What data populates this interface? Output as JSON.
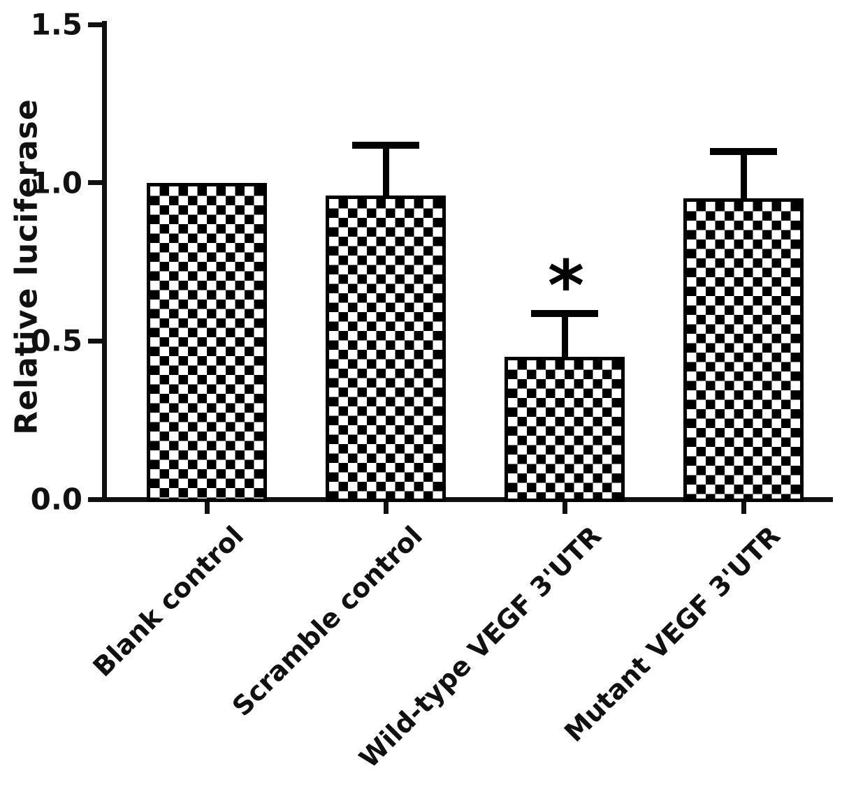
{
  "chart_data": {
    "type": "bar",
    "title": "",
    "xlabel": "",
    "ylabel": "Relative luciferase",
    "ylim": [
      0,
      1.5
    ],
    "yticks": [
      0,
      0.5,
      1,
      1.5
    ],
    "ytick_labels": [
      "0.0",
      "0.5",
      "1.0",
      "1.5"
    ],
    "categories": [
      "Blank control",
      "Scramble control",
      "Wild-type VEGF 3'UTR",
      "Mutant VEGF 3'UTR"
    ],
    "values": [
      1.0,
      0.96,
      0.45,
      0.95
    ],
    "errors": [
      0,
      0.16,
      0.14,
      0.15
    ],
    "error_bar_direction": "upper-only",
    "annotations": [
      {
        "category_index": 2,
        "text": "*",
        "meaning": "significant-difference"
      }
    ],
    "legend": "none",
    "grid": "off",
    "bar_fill": "black-white-checkerboard",
    "colors": {
      "bar_outline": "#000000",
      "pattern": "#000000",
      "axis": "#111111",
      "background": "#ffffff"
    }
  }
}
